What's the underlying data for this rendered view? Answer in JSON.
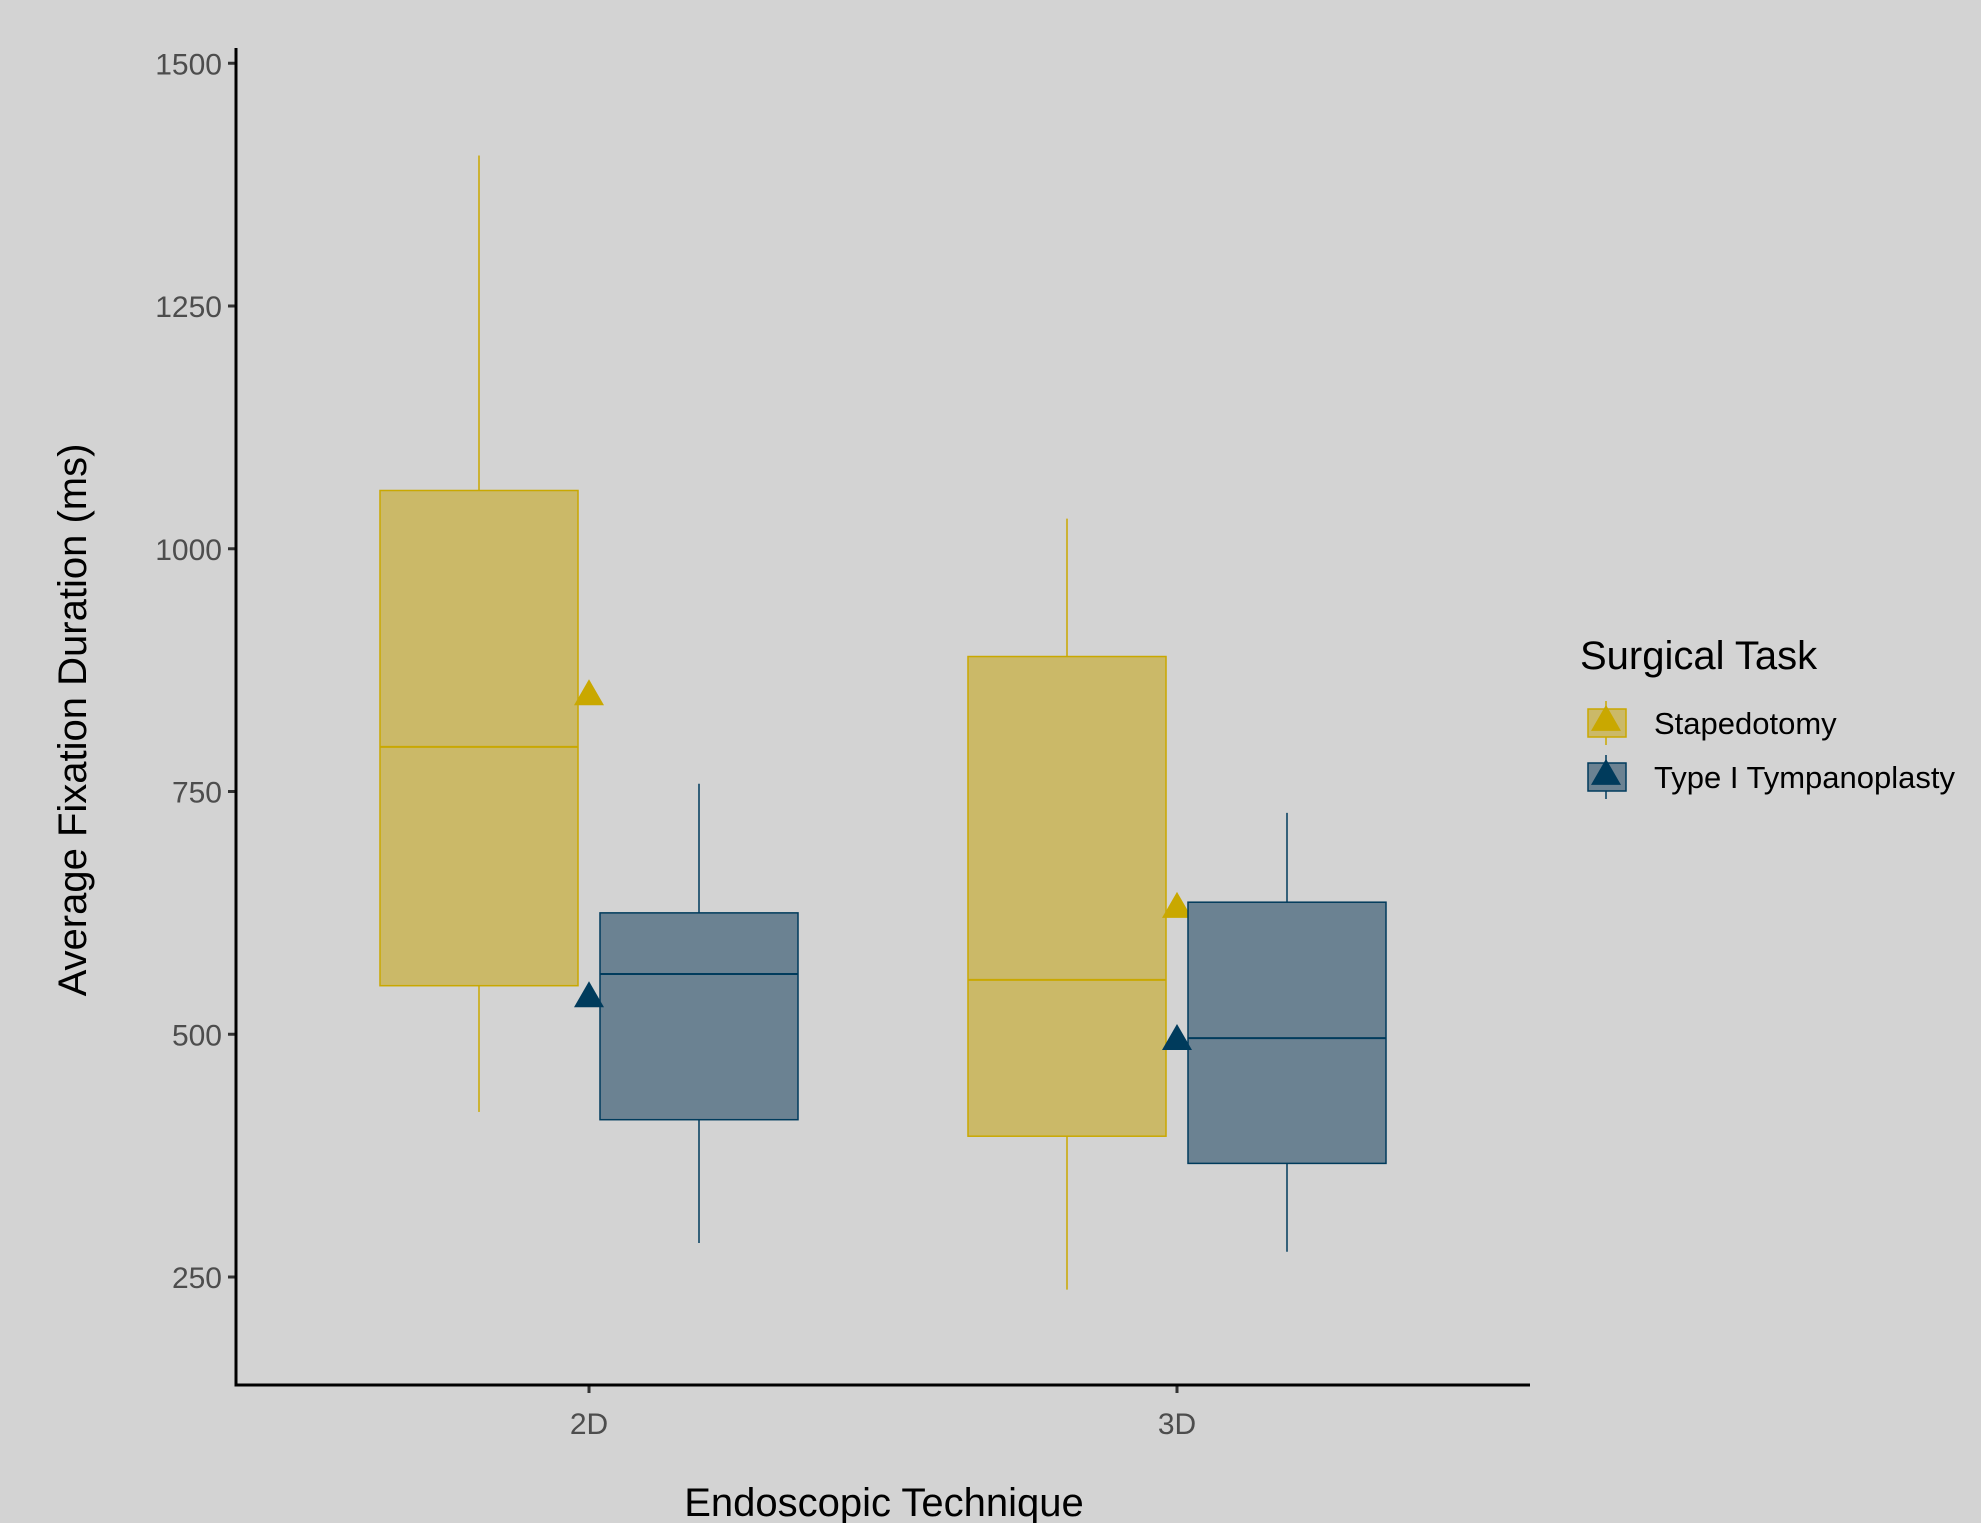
{
  "chart_data": {
    "type": "box",
    "xlabel": "Endoscopic Technique",
    "ylabel": "Average Fixation Duration (ms)",
    "categories": [
      "2D",
      "3D"
    ],
    "y_ticks": [
      "250",
      "500",
      "750",
      "1000",
      "1250",
      "1500"
    ],
    "ylim": [
      140,
      1510
    ],
    "legend": {
      "title": "Surgical Task",
      "placement": "right"
    },
    "series": [
      {
        "name": "Stapedotomy",
        "color": "#c9a800",
        "fill": "#cbb968",
        "boxes": [
          {
            "category": "2D",
            "min": 420,
            "q1": 550,
            "median": 796,
            "q3": 1060,
            "max": 1405,
            "mean": 849
          },
          {
            "category": "3D",
            "min": 237,
            "q1": 395,
            "median": 556,
            "q3": 889,
            "max": 1031,
            "mean": 630
          }
        ]
      },
      {
        "name": "Type I Tympanoplasty",
        "color": "#003b5c",
        "fill": "#6b8292",
        "boxes": [
          {
            "category": "2D",
            "min": 285,
            "q1": 412,
            "median": 562,
            "q3": 625,
            "max": 758,
            "mean": 538
          },
          {
            "category": "3D",
            "min": 276,
            "q1": 367,
            "median": 496,
            "q3": 636,
            "max": 728,
            "mean": 494
          }
        ]
      }
    ]
  }
}
